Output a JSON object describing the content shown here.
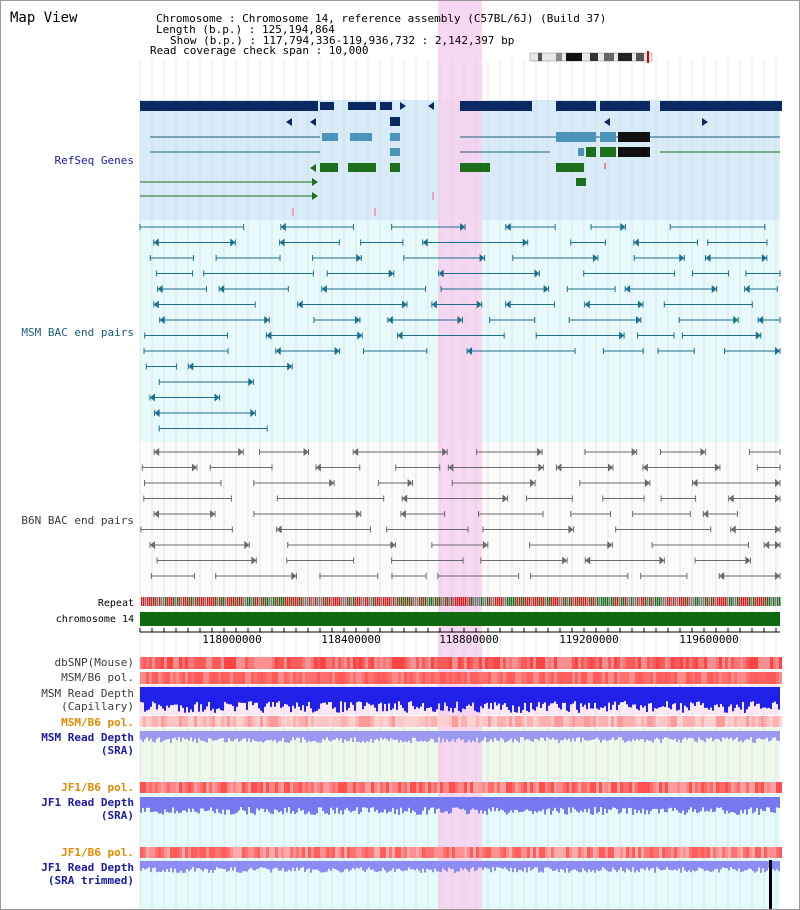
{
  "title": "Map View",
  "header": {
    "chromosome_line": "Chromosome    : Chromosome 14, reference assembly (C57BL/6J) (Build 37)",
    "length_line": "Length (b.p.) : 125,194,864",
    "show_line": "Show (b.p.) : 117,794,336-119,936,732 : 2,142,397 bp",
    "coverage_line": "Read coverage check span : 10,000"
  },
  "tracks": {
    "refseq": "RefSeq Genes",
    "msm_bac": "MSM BAC end pairs",
    "b6n_bac": "B6N BAC end pairs",
    "repeat": "Repeat",
    "chromosome": "chromosome 14",
    "dbsnp": "dbSNP(Mouse)",
    "msm_b6_pol": "MSM/B6 pol.",
    "msm_read_depth_cap": "MSM Read Depth",
    "msm_read_depth_cap_sub": "(Capillary)",
    "msm_b6_pol_2": "MSM/B6 pol.",
    "msm_read_depth_sra": "MSM Read Depth",
    "msm_read_depth_sra_sub": "(SRA)",
    "jf1_b6_pol": "JF1/B6 pol.",
    "jf1_read_depth": "JF1 Read Depth",
    "jf1_read_depth_sub": "(SRA)",
    "jf1_b6_pol_2": "JF1/B6 pol.",
    "jf1_read_depth_trim": "JF1 Read Depth",
    "jf1_read_depth_trim_sub": "(SRA trimmed)"
  },
  "axis": {
    "ticks": [
      "118000000",
      "118400000",
      "118800000",
      "119200000",
      "119600000"
    ]
  },
  "colors": {
    "label_blue": "#1a1aa8",
    "label_teal": "#1d5f78",
    "label_gray": "#3a3a3a",
    "label_orange": "#e08a00",
    "gene_navy": "#0b2a63",
    "gene_green": "#1d6e1d",
    "gene_teal": "#4b93b8",
    "highlight": "#f6d3f0",
    "chromosome_bar": "#0f6a0f"
  }
}
